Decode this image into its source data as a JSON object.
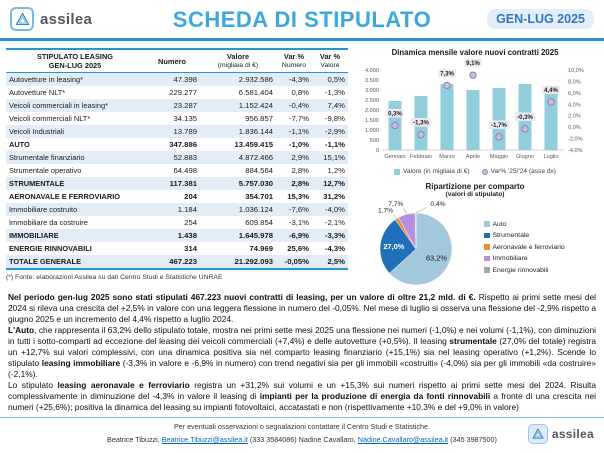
{
  "header": {
    "logo_text": "assilea",
    "title": "SCHEDA DI STIPULATO",
    "period": "GEN-LUG 2025"
  },
  "colors": {
    "accent_blue": "#2A93D5",
    "title_blue": "#3BA7DF",
    "table_alt_row": "#E2EDF7",
    "bar_fill": "#92CDDC",
    "marker_fill": "#C9BFDC",
    "marker_stroke": "#8E7FB5"
  },
  "table": {
    "headers": {
      "col1_line1": "STIPULATO LEASING",
      "col1_line2": "GEN-LUG 2025",
      "col2": "Numero",
      "col3_line1": "Valore",
      "col3_line2": "(migliaia di €)",
      "col4_line1": "Var %",
      "col4_line2": "Numero",
      "col5_line1": "Var %",
      "col5_line2": "Valore"
    },
    "rows": [
      {
        "label": "Autovetture in leasing*",
        "numero": "47.398",
        "valore": "2.932.586",
        "var_numero": "-4,3%",
        "var_valore": "0,5%",
        "bold": false
      },
      {
        "label": "Autovetture NLT*",
        "numero": "229.277",
        "valore": "6.581.404",
        "var_numero": "0,8%",
        "var_valore": "-1,3%",
        "bold": false
      },
      {
        "label": "Veicoli commerciali in leasing*",
        "numero": "23.287",
        "valore": "1.152.424",
        "var_numero": "-0,4%",
        "var_valore": "7,4%",
        "bold": false
      },
      {
        "label": "Veicoli commerciali NLT*",
        "numero": "34.135",
        "valore": "956.857",
        "var_numero": "-7,7%",
        "var_valore": "-9,8%",
        "bold": false
      },
      {
        "label": "Veicoli Industriali",
        "numero": "13.789",
        "valore": "1.836.144",
        "var_numero": "-1,1%",
        "var_valore": "-2,9%",
        "bold": false
      },
      {
        "label": "AUTO",
        "numero": "347.886",
        "valore": "13.459.415",
        "var_numero": "-1,0%",
        "var_valore": "-1,1%",
        "bold": true
      },
      {
        "label": "Strumentale finanziario",
        "numero": "52.883",
        "valore": "4.872.466",
        "var_numero": "2,9%",
        "var_valore": "15,1%",
        "bold": false
      },
      {
        "label": "Strumentale operativo",
        "numero": "64.498",
        "valore": "884.564",
        "var_numero": "2,8%",
        "var_valore": "1,2%",
        "bold": false
      },
      {
        "label": "STRUMENTALE",
        "numero": "117.381",
        "valore": "5.757.030",
        "var_numero": "2,8%",
        "var_valore": "12,7%",
        "bold": true
      },
      {
        "label": "AERONAVALE E FERROVIARIO",
        "numero": "204",
        "valore": "354.701",
        "var_numero": "15,3%",
        "var_valore": "31,2%",
        "bold": true
      },
      {
        "label": "Immobiliare costruito",
        "numero": "1.184",
        "valore": "1.036.124",
        "var_numero": "-7,6%",
        "var_valore": "-4,0%",
        "bold": false
      },
      {
        "label": "Immobiliare da costruire",
        "numero": "254",
        "valore": "609.854",
        "var_numero": "-3,1%",
        "var_valore": "-2,1%",
        "bold": false
      },
      {
        "label": "IMMOBILIARE",
        "numero": "1.438",
        "valore": "1.645.978",
        "var_numero": "-6,9%",
        "var_valore": "-3,3%",
        "bold": true
      },
      {
        "label": "ENERGIE RINNOVABILI",
        "numero": "314",
        "valore": "74.969",
        "var_numero": "25,6%",
        "var_valore": "-4,3%",
        "bold": true
      },
      {
        "label": "TOTALE GENERALE",
        "numero": "467.223",
        "valore": "21.292.093",
        "var_numero": "-0,05%",
        "var_valore": "2,5%",
        "bold": true
      }
    ],
    "footnote": "(*) Fonte: elaborazioni Assilea su dati Centro Studi e Statistiche UNRAE"
  },
  "chart_data": [
    {
      "type": "bar",
      "title": "Dinamica mensile valore nuovi contratti 2025",
      "categories": [
        "Gennaio",
        "Febbraio",
        "Marzo",
        "Aprile",
        "Maggio",
        "Giugno",
        "Luglio"
      ],
      "series": [
        {
          "name": "Valore (in migliaia di €)",
          "type": "bar",
          "axis": "left",
          "color": "#92CDDC",
          "values": [
            2450,
            2700,
            3300,
            3000,
            3100,
            3300,
            3200
          ]
        },
        {
          "name": "Var% '25/'24 (asse dx)",
          "type": "point",
          "axis": "right",
          "color": "#C9BFDC",
          "stroke": "#8E7FB5",
          "values": [
            0.3,
            -1.3,
            7.3,
            9.1,
            -1.7,
            -0.3,
            4.4
          ],
          "labels": [
            "0,3%",
            "-1,3%",
            "7,3%",
            "9,1%",
            "-1,7%",
            "-0,3%",
            "4,4%"
          ]
        }
      ],
      "left_axis": {
        "min": 0,
        "max": 4000,
        "step": 500,
        "tick_labels": [
          "0",
          "500",
          "1.000",
          "1.500",
          "2.000",
          "2.500",
          "3.000",
          "3.500",
          "4.000"
        ]
      },
      "right_axis": {
        "min": -4,
        "max": 10,
        "step": 2,
        "tick_labels": [
          "-4,0%",
          "-2,0%",
          "0,0%",
          "2,0%",
          "4,0%",
          "6,0%",
          "8,0%",
          "10,0%"
        ]
      },
      "grid": false,
      "legend_position": "bottom"
    },
    {
      "type": "pie",
      "title": "Ripartizione per comparto",
      "subtitle": "(valori di stipulato)",
      "labels": [
        "Auto",
        "Strumentale",
        "Aeronavale e ferroviario",
        "Immobiliare",
        "Energie rinnovabili"
      ],
      "values": [
        63.2,
        27.0,
        1.7,
        7.7,
        0.4
      ],
      "display_labels": [
        "63,2%",
        "27,0%",
        "1,7%",
        "7,7%",
        "0,4%"
      ],
      "colors": [
        "#A3C7DB",
        "#1F70B8",
        "#E98E3A",
        "#B78FDF",
        "#A6A6A6"
      ],
      "legend_position": "right"
    }
  ],
  "body_text": {
    "paragraphs": [
      {
        "runs": [
          {
            "t": "Nel periodo gen-lug 2025 sono stati stipulati 467.223 nuovi contratti di leasing, per un valore di oltre 21,2 mld. di €.",
            "b": true
          },
          {
            "t": " Rispetto ai primi sette mesi del 2024 si rileva una crescita del +2,5% in valore con una leggera flessione in numero del -0,05%. Nel mese di luglio si osserva una flessione del -2,9% rispetto a giugno 2025 e un incremento del 4,4% rispetto a luglio 2024."
          }
        ]
      },
      {
        "runs": [
          {
            "t": "L'Auto",
            "b": true
          },
          {
            "t": ", che rappresenta il 63,2% dello stipulato totale, mostra nei primi sette mesi 2025 una flessione nei numeri (-1,0%) e nei volumi (-1,1%), con diminuzioni in tutti i sotto-comparti ad eccezione del leasing dei veicoli commerciali (+7,4%) e delle autovetture (+0,5%). Il leasing "
          },
          {
            "t": "strumentale",
            "b": true
          },
          {
            "t": " (27,0% del totale) registra un +12,7% sui valori complessivi, con una dinamica positiva sia nel comparto leasing finanziario (+15,1%) sia nel leasing operativo (+1,2%). Scende lo stipulato "
          },
          {
            "t": "leasing immobiliare",
            "b": true
          },
          {
            "t": " (-3,3% in valore e -6,9% in numero) con trend negativi sia per gli immobili «costruiti» (-4,0%) sia per gli immobili «da costruire» (-2,1%)."
          }
        ]
      },
      {
        "runs": [
          {
            "t": "Lo stipulato "
          },
          {
            "t": "leasing aeronavale e ferroviario",
            "b": true
          },
          {
            "t": " registra un +31,2% sui volumi e un +15,3% sui numeri rispetto ai primi sette mesi del 2024. Risulta complessivamente in diminuzione del -4,3% in valore il leasing di "
          },
          {
            "t": "impianti per la produzione di energia da fonti rinnovabili",
            "b": true
          },
          {
            "t": " a fronte di una crescita nei numeri (+25,6%); positiva la dinamica del leasing su impianti fotovoltaici, accatastati e non (rispettivamente +10,3% e del +9,0% in valore)"
          }
        ]
      }
    ]
  },
  "footer": {
    "line1": "Per eventuali osservazioni o segnalazioni contattare il Centro Studi e Statistiche.",
    "line2_runs": [
      {
        "t": "Beatrice Tibuzzi, "
      },
      {
        "t": "Beatrice.Tibuzzi@assilea.it",
        "link": true
      },
      {
        "t": " (333 3584086) Nadine Cavallaro, "
      },
      {
        "t": "Nadine.Cavallaro@assilea.it",
        "link": true
      },
      {
        "t": " (345 3987500)"
      }
    ],
    "logo_text": "assilea"
  }
}
